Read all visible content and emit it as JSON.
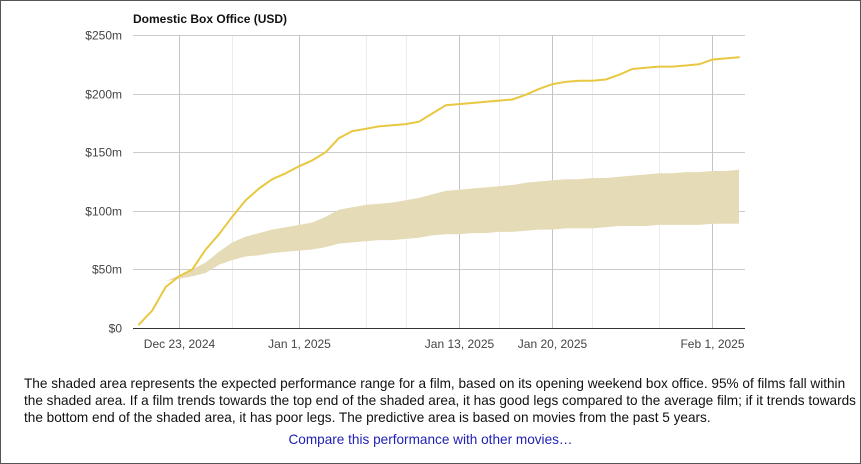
{
  "chart_data": {
    "type": "line",
    "title": "Domestic Box Office (USD)",
    "x_axis": {
      "start": "2024-12-20",
      "end": "2025-02-03",
      "ticks": [
        {
          "date": "2024-12-23",
          "label": "Dec 23, 2024"
        },
        {
          "date": "2025-01-01",
          "label": "Jan 1, 2025"
        },
        {
          "date": "2025-01-13",
          "label": "Jan 13, 2025"
        },
        {
          "date": "2025-01-20",
          "label": "Jan 20, 2025"
        },
        {
          "date": "2025-02-01",
          "label": "Feb 1, 2025"
        }
      ],
      "minor_ticks": [
        "2024-12-27",
        "2025-01-06",
        "2025-01-09",
        "2025-01-16",
        "2025-01-23",
        "2025-01-28"
      ]
    },
    "y_axis": {
      "ylim": [
        0,
        250
      ],
      "ticks": [
        {
          "value": 0,
          "label": "$0"
        },
        {
          "value": 50,
          "label": "$50m"
        },
        {
          "value": 100,
          "label": "$100m"
        },
        {
          "value": 150,
          "label": "$150m"
        },
        {
          "value": 200,
          "label": "$200m"
        },
        {
          "value": 250,
          "label": "$250m"
        }
      ]
    },
    "grid": true,
    "series": [
      {
        "role": "actual",
        "color": "#e8c840",
        "points": [
          [
            "2024-12-20",
            3
          ],
          [
            "2024-12-21",
            15
          ],
          [
            "2024-12-22",
            35
          ],
          [
            "2024-12-23",
            44
          ],
          [
            "2024-12-24",
            50
          ],
          [
            "2024-12-25",
            67
          ],
          [
            "2024-12-26",
            80
          ],
          [
            "2024-12-27",
            95
          ],
          [
            "2024-12-28",
            109
          ],
          [
            "2024-12-29",
            119
          ],
          [
            "2024-12-30",
            127
          ],
          [
            "2024-12-31",
            132
          ],
          [
            "2025-01-01",
            138
          ],
          [
            "2025-01-02",
            143
          ],
          [
            "2025-01-03",
            150
          ],
          [
            "2025-01-04",
            162
          ],
          [
            "2025-01-05",
            168
          ],
          [
            "2025-01-06",
            170
          ],
          [
            "2025-01-07",
            172
          ],
          [
            "2025-01-08",
            173
          ],
          [
            "2025-01-09",
            174
          ],
          [
            "2025-01-10",
            176
          ],
          [
            "2025-01-11",
            183
          ],
          [
            "2025-01-12",
            190
          ],
          [
            "2025-01-13",
            191
          ],
          [
            "2025-01-14",
            192
          ],
          [
            "2025-01-15",
            193
          ],
          [
            "2025-01-16",
            194
          ],
          [
            "2025-01-17",
            195
          ],
          [
            "2025-01-18",
            199
          ],
          [
            "2025-01-19",
            204
          ],
          [
            "2025-01-20",
            208
          ],
          [
            "2025-01-21",
            210
          ],
          [
            "2025-01-22",
            211
          ],
          [
            "2025-01-23",
            211
          ],
          [
            "2025-01-24",
            212
          ],
          [
            "2025-01-25",
            216
          ],
          [
            "2025-01-26",
            221
          ],
          [
            "2025-01-27",
            222
          ],
          [
            "2025-01-28",
            223
          ],
          [
            "2025-01-29",
            223
          ],
          [
            "2025-01-30",
            224
          ],
          [
            "2025-01-31",
            225
          ],
          [
            "2025-02-01",
            229
          ],
          [
            "2025-02-02",
            230
          ],
          [
            "2025-02-03",
            231
          ]
        ]
      }
    ],
    "range_band": {
      "role": "expected-performance-range",
      "color": "#e6dbb7",
      "points": [
        [
          "2024-12-22",
          40,
          40
        ],
        [
          "2024-12-23",
          42,
          45
        ],
        [
          "2024-12-24",
          44,
          50
        ],
        [
          "2024-12-25",
          47,
          56
        ],
        [
          "2024-12-26",
          54,
          65
        ],
        [
          "2024-12-27",
          58,
          73
        ],
        [
          "2024-12-28",
          61,
          78
        ],
        [
          "2024-12-29",
          62,
          81
        ],
        [
          "2024-12-30",
          64,
          84
        ],
        [
          "2024-12-31",
          65,
          86
        ],
        [
          "2025-01-01",
          66,
          88
        ],
        [
          "2025-01-02",
          67,
          90
        ],
        [
          "2025-01-03",
          69,
          95
        ],
        [
          "2025-01-04",
          72,
          101
        ],
        [
          "2025-01-05",
          73,
          103
        ],
        [
          "2025-01-06",
          74,
          105
        ],
        [
          "2025-01-07",
          75,
          106
        ],
        [
          "2025-01-08",
          75,
          107
        ],
        [
          "2025-01-09",
          76,
          109
        ],
        [
          "2025-01-10",
          77,
          111
        ],
        [
          "2025-01-11",
          79,
          114
        ],
        [
          "2025-01-12",
          80,
          117
        ],
        [
          "2025-01-13",
          80,
          118
        ],
        [
          "2025-01-14",
          81,
          119
        ],
        [
          "2025-01-15",
          81,
          120
        ],
        [
          "2025-01-16",
          82,
          121
        ],
        [
          "2025-01-17",
          82,
          122
        ],
        [
          "2025-01-18",
          83,
          124
        ],
        [
          "2025-01-19",
          84,
          125
        ],
        [
          "2025-01-20",
          84,
          126
        ],
        [
          "2025-01-21",
          85,
          127
        ],
        [
          "2025-01-22",
          85,
          127
        ],
        [
          "2025-01-23",
          85,
          128
        ],
        [
          "2025-01-24",
          86,
          128
        ],
        [
          "2025-01-25",
          87,
          129
        ],
        [
          "2025-01-26",
          87,
          130
        ],
        [
          "2025-01-27",
          87,
          131
        ],
        [
          "2025-01-28",
          88,
          132
        ],
        [
          "2025-01-29",
          88,
          132
        ],
        [
          "2025-01-30",
          88,
          133
        ],
        [
          "2025-01-31",
          88,
          133
        ],
        [
          "2025-02-01",
          89,
          134
        ],
        [
          "2025-02-02",
          89,
          134
        ],
        [
          "2025-02-03",
          89,
          135
        ]
      ]
    }
  },
  "caption": "The shaded area represents the expected performance range for a film, based on its opening weekend box office. 95% of films fall within the shaded area. If a film trends towards the top end of the shaded area, it has good legs compared to the average film; if it trends towards the bottom end of the shaded area, it has poor legs. The predictive area is based on movies from the past 5 years.",
  "compare_link": "Compare this performance with other movies…"
}
